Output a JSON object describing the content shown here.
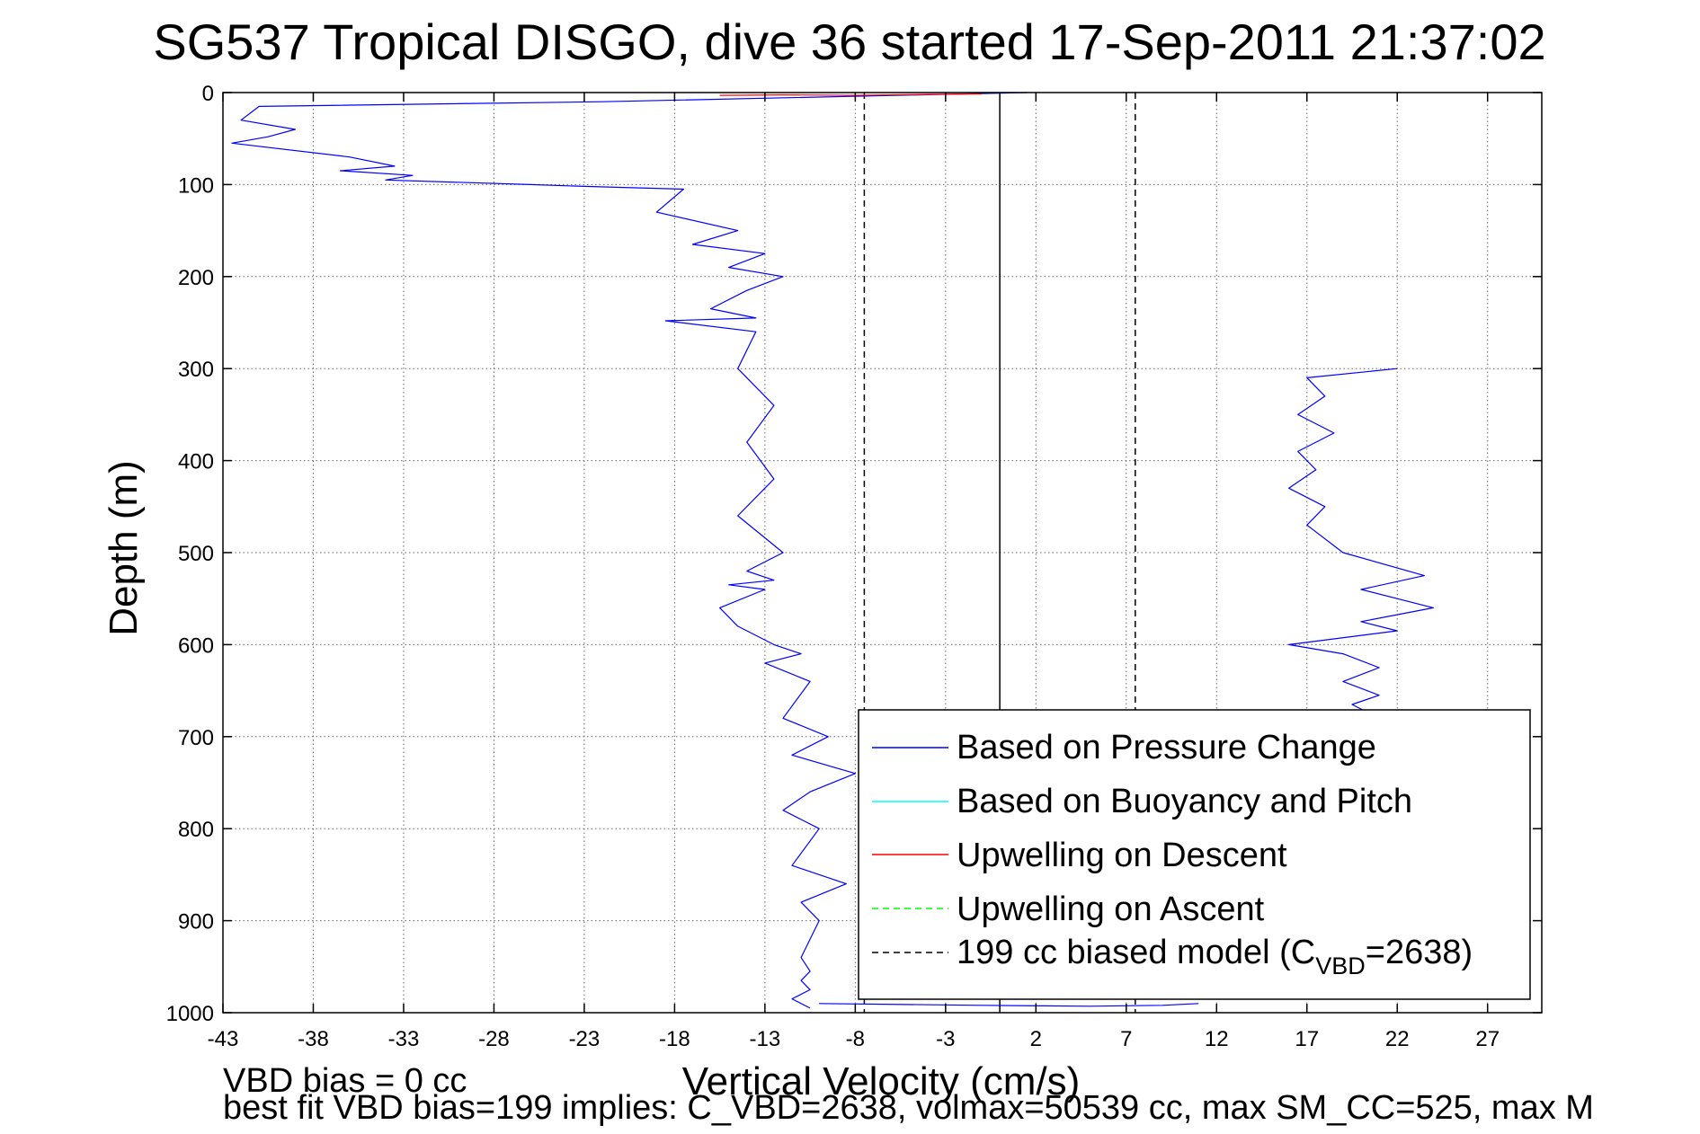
{
  "chart_data": {
    "type": "line",
    "title": "SG537 Tropical DISGO, dive 36 started 17-Sep-2011 21:37:02",
    "xlabel": "Vertical Velocity (cm/s)",
    "ylabel": "Depth (m)",
    "xlim": [
      -43,
      30
    ],
    "ylim": [
      0,
      1000
    ],
    "y_reversed": true,
    "grid": true,
    "x_ticks": [
      "-43",
      "-38",
      "-33",
      "-28",
      "-23",
      "-18",
      "-13",
      "-8",
      "-3",
      "2",
      "7",
      "12",
      "17",
      "22",
      "27"
    ],
    "y_ticks": [
      "0",
      "100",
      "200",
      "300",
      "400",
      "500",
      "600",
      "700",
      "800",
      "900",
      "1000"
    ],
    "legend_position": "bottom-right",
    "legend": [
      {
        "label": "Based on Pressure Change",
        "color": "#0000ff",
        "dash": "solid"
      },
      {
        "label": "Based on Buoyancy and Pitch",
        "color": "#00ffff",
        "dash": "solid"
      },
      {
        "label": "Upwelling on Descent",
        "color": "#ff0000",
        "dash": "solid"
      },
      {
        "label": "Upwelling on Ascent",
        "color": "#00ff00",
        "dash": "dashed"
      },
      {
        "label_main": "199 cc biased model (C",
        "label_sub": "VBD",
        "label_tail": "=2638)",
        "color": "#000000",
        "dash": "dashed"
      }
    ],
    "series": [
      {
        "name": "Based on Pressure Change",
        "color": "#0000ff",
        "segments": [
          {
            "x": [
              1.5,
              -22,
              -41,
              -42,
              -39,
              -40.5,
              -42.5,
              -36,
              -33.5,
              -36.5,
              -32.5,
              -34,
              -26,
              -23,
              -17.5,
              -19,
              -14.5,
              -17,
              -13,
              -15,
              -12,
              -14,
              -16,
              -13.5,
              -18.5,
              -13.5,
              -14.5,
              -12.5,
              -14,
              -12.5,
              -14.5,
              -12,
              -14,
              -12.5,
              -15,
              -13,
              -15.5,
              -14.5,
              -12.5,
              -11,
              -13,
              -10.5,
              -12,
              -9.5,
              -11.5,
              -8,
              -10.5,
              -12,
              -10,
              -11.5,
              -8.5,
              -11,
              -10,
              -10.5,
              -11,
              -10.5,
              -11,
              -10.5,
              -11.5,
              -10.5
            ],
            "y": [
              0,
              10,
              15,
              30,
              40,
              48,
              55,
              70,
              80,
              85,
              90,
              95,
              100,
              102,
              105,
              130,
              150,
              165,
              175,
              190,
              200,
              215,
              235,
              245,
              248,
              260,
              300,
              340,
              380,
              420,
              460,
              500,
              520,
              530,
              535,
              540,
              560,
              580,
              600,
              610,
              620,
              640,
              680,
              700,
              720,
              740,
              760,
              780,
              800,
              840,
              860,
              880,
              900,
              920,
              940,
              955,
              965,
              975,
              985,
              995
            ]
          },
          {
            "x": [
              22,
              17,
              18,
              16.5,
              18.5,
              16.5,
              17.5,
              16,
              18,
              17,
              19,
              23.5,
              20,
              24,
              20,
              22,
              16,
              19,
              21,
              19,
              21,
              19.5,
              21
            ],
            "y": [
              300,
              310,
              330,
              350,
              370,
              390,
              410,
              430,
              450,
              470,
              500,
              525,
              540,
              560,
              575,
              585,
              600,
              610,
              625,
              640,
              655,
              665,
              680
            ]
          },
          {
            "x": [
              -10,
              -1,
              5,
              9,
              11
            ],
            "y": [
              990,
              992,
              993,
              992,
              990
            ]
          }
        ]
      },
      {
        "name": "Upwelling on Descent",
        "color": "#ff0000",
        "segments": [
          {
            "x": [
              -15.5,
              -12,
              -8,
              -4,
              -1
            ],
            "y": [
              3,
              2.5,
              3,
              2,
              1.5
            ]
          }
        ]
      }
    ],
    "reference_lines": [
      {
        "x": -7.5,
        "color": "#000000",
        "dash": "dashed"
      },
      {
        "x": 0,
        "color": "#000000",
        "dash": "solid"
      },
      {
        "x": 7.5,
        "color": "#000000",
        "dash": "dashed"
      }
    ]
  },
  "notes": {
    "line1": "VBD bias = 0 cc",
    "line2": "best fit VBD bias=199 implies: C_VBD=2638, volmax=50539 cc, max SM_CC=525, max M"
  }
}
